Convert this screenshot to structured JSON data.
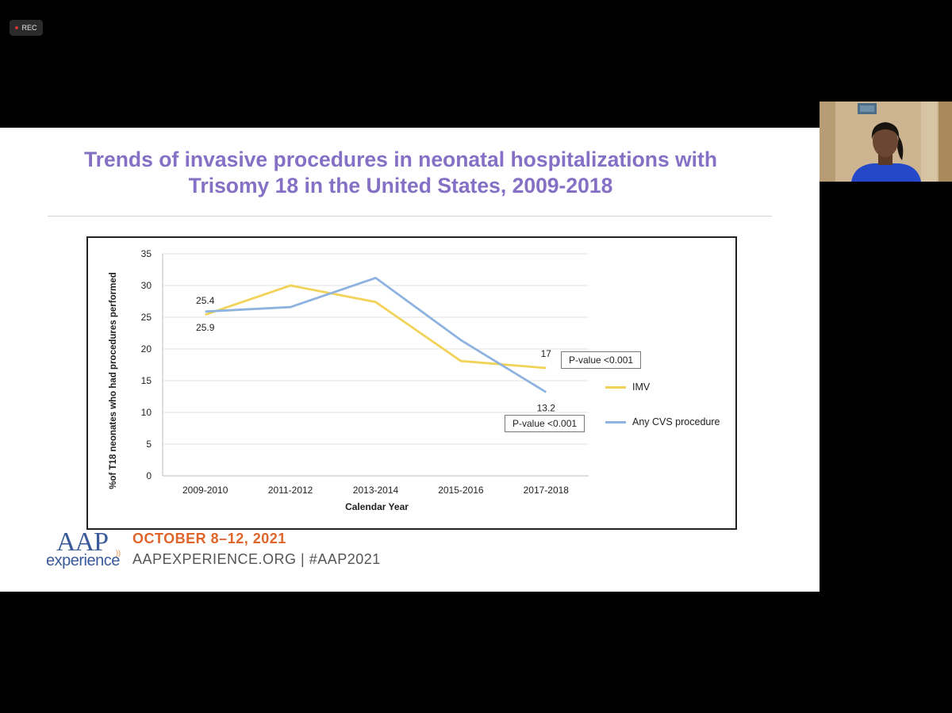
{
  "recorder": {
    "label": "REC",
    "icon": "record-dot-icon"
  },
  "slide": {
    "title_line1": "Trends of invasive procedures in neonatal hospitalizations with",
    "title_line2": "Trisomy 18 in the United States, 2009-2018",
    "title_color": "#8470c4"
  },
  "chart_data": {
    "type": "line",
    "ylabel": "%of T18 neonates who had procedures performed",
    "xlabel": "Calendar Year",
    "ylim": [
      0,
      35
    ],
    "yticks": [
      0,
      5,
      10,
      15,
      20,
      25,
      30,
      35
    ],
    "categories": [
      "2009-2010",
      "2011-2012",
      "2013-2014",
      "2015-2016",
      "2017-2018"
    ],
    "grid": "horizontal",
    "legend_position": "right",
    "series": [
      {
        "name": "IMV",
        "color": "#f2d35a",
        "values": [
          25.4,
          30.0,
          27.4,
          18.1,
          17.0
        ]
      },
      {
        "name": "Any CVS procedure",
        "color": "#8eb3e0",
        "values": [
          25.9,
          26.6,
          31.2,
          21.4,
          13.2
        ]
      }
    ],
    "data_labels": [
      {
        "text": "25.4",
        "series": "IMV",
        "index": 0,
        "placement": "above"
      },
      {
        "text": "25.9",
        "series": "Any CVS procedure",
        "index": 0,
        "placement": "below"
      },
      {
        "text": "17",
        "series": "IMV",
        "index": 4,
        "placement": "above"
      },
      {
        "text": "13.2",
        "series": "Any CVS procedure",
        "index": 4,
        "placement": "below"
      }
    ],
    "annotations": [
      "P-value <0.001",
      "P-value <0.001"
    ]
  },
  "footer": {
    "logo_top": "AAP",
    "logo_bottom": "experience",
    "dates": "OCTOBER 8–12, 2021",
    "site": "AAPEXPERIENCE.ORG | #AAP2021"
  },
  "webcam": {
    "content": "participant-video"
  }
}
